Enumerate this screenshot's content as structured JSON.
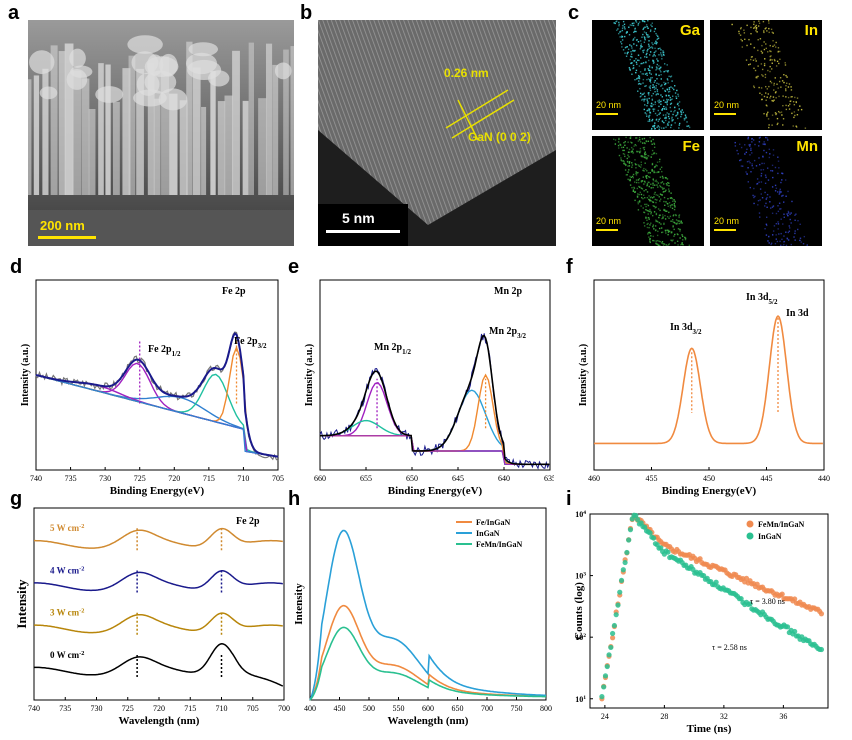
{
  "panel_labels": {
    "a": "a",
    "b": "b",
    "c": "c",
    "d": "d",
    "e": "e",
    "f": "f",
    "g": "g",
    "h": "h",
    "i": "i"
  },
  "sem": {
    "scalebar": "200 nm"
  },
  "hrtem": {
    "lattice": "0.26 nm",
    "plane": "GaN (0 0 2)",
    "scalebar": "5 nm"
  },
  "eds": [
    {
      "element": "Ga",
      "scalebar": "20 nm",
      "color": "#3fd0d8"
    },
    {
      "element": "In",
      "scalebar": "20 nm",
      "color": "#c8c040"
    },
    {
      "element": "Fe",
      "scalebar": "20 nm",
      "color": "#3fb040"
    },
    {
      "element": "Mn",
      "scalebar": "20 nm",
      "color": "#3040c0"
    }
  ],
  "chart_data": [
    {
      "id": "d",
      "type": "line",
      "title": "Fe 2p",
      "xlabel": "Binding Energy(eV)",
      "ylabel": "Intensity (a.u.)",
      "xlim": [
        740,
        705
      ],
      "xticks": [
        740,
        735,
        730,
        725,
        720,
        715,
        710,
        705
      ],
      "annotations": {
        "p12": "Fe 2p",
        "p12sub": "1/2",
        "p32": "Fe 2p",
        "p32sub": "3/2"
      },
      "peaks": [
        {
          "center": 725,
          "label": "Fe 2p1/2"
        },
        {
          "center": 711,
          "label": "Fe 2p3/2"
        }
      ]
    },
    {
      "id": "e",
      "type": "line",
      "title": "Mn 2p",
      "xlabel": "Binding Energy(eV)",
      "ylabel": "Intensity (a.u.)",
      "xlim": [
        660,
        635
      ],
      "xticks": [
        660,
        655,
        650,
        645,
        640,
        635
      ],
      "annotations": {
        "p12": "Mn 2p",
        "p12sub": "1/2",
        "p32": "Mn 2p",
        "p32sub": "3/2"
      },
      "peaks": [
        {
          "center": 653.8,
          "label": "Mn 2p1/2"
        },
        {
          "center": 642,
          "label": "Mn 2p3/2"
        }
      ]
    },
    {
      "id": "f",
      "type": "line",
      "title": "In 3d",
      "xlabel": "Binding Energy(eV)",
      "ylabel": "Intensity (a.u.)",
      "xlim": [
        460,
        440
      ],
      "xticks": [
        460,
        455,
        450,
        445,
        440
      ],
      "annotations": {
        "p32": "In 3d",
        "p32sub": "3/2",
        "p52": "In 3d",
        "p52sub": "5/2"
      },
      "peaks": [
        {
          "center": 451.5,
          "label": "In 3d3/2"
        },
        {
          "center": 444,
          "label": "In 3d5/2"
        }
      ]
    },
    {
      "id": "g",
      "type": "line",
      "title": "Fe 2p",
      "xlabel": "Wavelength (nm)",
      "ylabel": "Intensity",
      "xlim": [
        740,
        700
      ],
      "xticks": [
        740,
        735,
        730,
        725,
        720,
        715,
        710,
        705,
        700
      ],
      "series": [
        {
          "name": "0 W cm",
          "sup": "-2",
          "color": "#000000"
        },
        {
          "name": "3 W cm",
          "sup": "-2",
          "color": "#b8860b"
        },
        {
          "name": "4 W cm",
          "sup": "-2",
          "color": "#1a1a8c"
        },
        {
          "name": "5 W cm",
          "sup": "-2",
          "color": "#d08a30"
        }
      ],
      "peaks": [
        723.5,
        710
      ]
    },
    {
      "id": "h",
      "type": "line",
      "xlabel": "Wavelength (nm)",
      "ylabel": "Intensity",
      "xlim": [
        400,
        800
      ],
      "xticks": [
        400,
        450,
        500,
        550,
        600,
        650,
        700,
        750,
        800
      ],
      "series": [
        {
          "name": "Fe/InGaN",
          "color": "#f08a40",
          "peak": 0.55
        },
        {
          "name": "InGaN",
          "color": "#2aa0d8",
          "peak": 1.0
        },
        {
          "name": "FeMn/InGaN",
          "color": "#2ac090",
          "peak": 0.42
        }
      ]
    },
    {
      "id": "i",
      "type": "scatter",
      "xlabel": "Time (ns)",
      "ylabel": "Counts (log)",
      "xlim": [
        23,
        39
      ],
      "xticks": [
        24,
        28,
        32,
        36
      ],
      "yticks": [
        "10",
        "10",
        "10",
        "10"
      ],
      "ytick_sup": [
        "1",
        "2",
        "3",
        "4"
      ],
      "series": [
        {
          "name": "FeMn/InGaN",
          "color": "#f08a50",
          "tau": "τ = 3.80 ns",
          "tauval": 3.8
        },
        {
          "name": "InGaN",
          "color": "#2ac090",
          "tau": "τ = 2.58 ns",
          "tauval": 2.58
        }
      ]
    }
  ]
}
